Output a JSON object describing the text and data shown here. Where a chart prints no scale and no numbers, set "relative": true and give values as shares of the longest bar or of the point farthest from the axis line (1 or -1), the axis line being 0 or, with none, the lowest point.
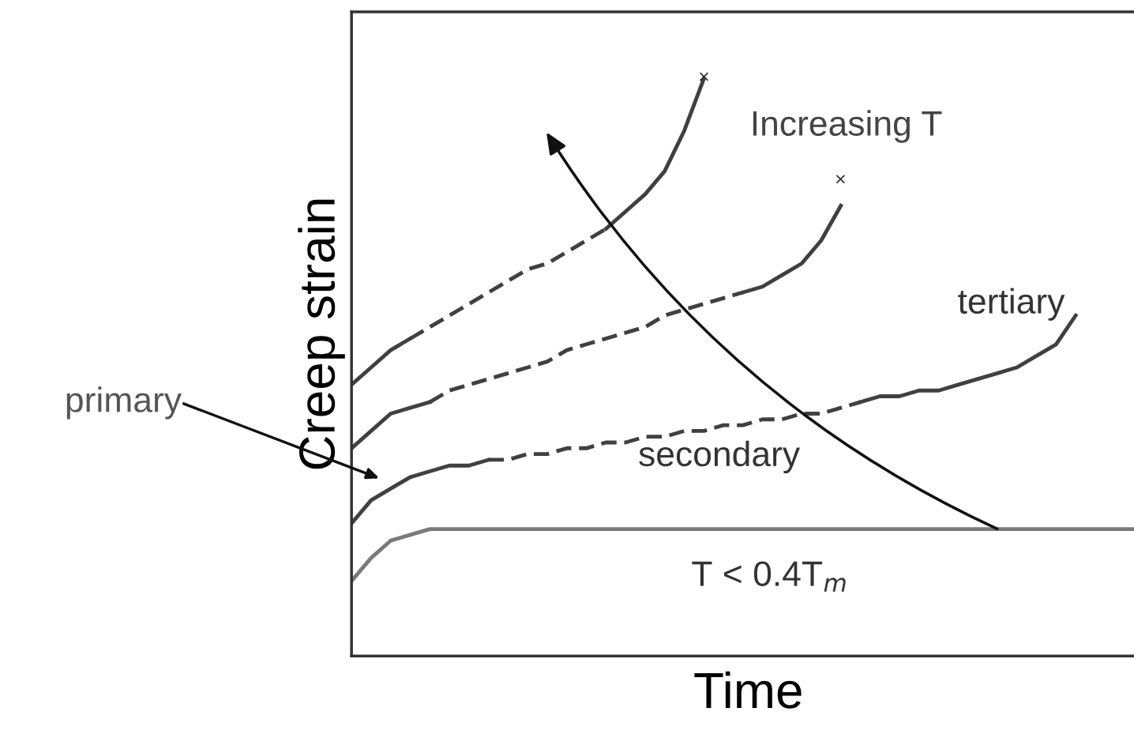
{
  "chart_data": {
    "type": "line",
    "relative": true,
    "xlabel": "Time",
    "ylabel": "Creep strain",
    "tick_labels": false,
    "categories": [
      null,
      null,
      null,
      null,
      null,
      null,
      null,
      null,
      null,
      null,
      null,
      null,
      null,
      null,
      null,
      null,
      null,
      null,
      null,
      null,
      null,
      null,
      null,
      null,
      null,
      null,
      null,
      null,
      null,
      null,
      null,
      null,
      null,
      null,
      null,
      null,
      null,
      null,
      null,
      null,
      null
    ],
    "series": [
      {
        "color": "#404040",
        "line_style": "solid",
        "values": [
          0.47,
          0.5,
          0.53,
          0.55,
          null,
          null,
          null,
          null,
          null,
          null,
          null,
          null,
          null,
          null,
          null,
          null,
          null,
          null,
          null,
          null,
          null,
          null,
          null,
          null,
          null,
          null,
          null,
          null,
          null,
          null,
          null,
          null,
          null,
          null,
          null,
          null,
          null,
          null,
          null,
          null,
          null
        ]
      },
      {
        "color": "#404040",
        "line_style": "dashed",
        "values": [
          null,
          null,
          null,
          0.55,
          0.57,
          0.59,
          0.61,
          0.63,
          0.65,
          0.67,
          0.68,
          0.7,
          0.72,
          0.74,
          null,
          null,
          null,
          null,
          null,
          null,
          null,
          null,
          null,
          null,
          null,
          null,
          null,
          null,
          null,
          null,
          null,
          null,
          null,
          null,
          null,
          null,
          null,
          null,
          null,
          null,
          null
        ]
      },
      {
        "color": "#404040",
        "line_style": "solid",
        "values": [
          null,
          null,
          null,
          null,
          null,
          null,
          null,
          null,
          null,
          null,
          null,
          null,
          null,
          0.74,
          0.77,
          0.8,
          0.84,
          0.91,
          1.0,
          null,
          null,
          null,
          null,
          null,
          null,
          null,
          null,
          null,
          null,
          null,
          null,
          null,
          null,
          null,
          null,
          null,
          null,
          null,
          null,
          null,
          null
        ]
      },
      {
        "color": "#404040",
        "line_style": "solid",
        "values": [
          0.36,
          0.39,
          0.42,
          0.43,
          0.44,
          null,
          null,
          null,
          null,
          null,
          null,
          null,
          null,
          null,
          null,
          null,
          null,
          null,
          null,
          null,
          null,
          null,
          null,
          null,
          null,
          null,
          null,
          null,
          null,
          null,
          null,
          null,
          null,
          null,
          null,
          null,
          null,
          null,
          null,
          null,
          null
        ]
      },
      {
        "color": "#404040",
        "line_style": "dashed",
        "values": [
          null,
          null,
          null,
          null,
          0.44,
          0.46,
          0.47,
          0.48,
          0.49,
          0.5,
          0.51,
          0.53,
          0.54,
          0.55,
          0.56,
          0.57,
          0.59,
          0.6,
          0.61,
          0.62,
          0.63,
          null,
          null,
          null,
          null,
          null,
          null,
          null,
          null,
          null,
          null,
          null,
          null,
          null,
          null,
          null,
          null,
          null,
          null,
          null,
          null
        ]
      },
      {
        "color": "#404040",
        "line_style": "solid",
        "values": [
          null,
          null,
          null,
          null,
          null,
          null,
          null,
          null,
          null,
          null,
          null,
          null,
          null,
          null,
          null,
          null,
          null,
          null,
          null,
          null,
          0.63,
          0.64,
          0.66,
          0.68,
          0.72,
          0.78,
          null,
          null,
          null,
          null,
          null,
          null,
          null,
          null,
          null,
          null,
          null,
          null,
          null,
          null,
          null
        ]
      },
      {
        "color": "#404040",
        "line_style": "solid",
        "values": [
          0.23,
          0.27,
          0.29,
          0.31,
          0.32,
          0.33,
          0.33,
          0.34,
          null,
          null,
          null,
          null,
          null,
          null,
          null,
          null,
          null,
          null,
          null,
          null,
          null,
          null,
          null,
          null,
          null,
          null,
          null,
          null,
          null,
          null,
          null,
          null,
          null,
          null,
          null,
          null,
          null,
          null,
          null,
          null,
          null
        ]
      },
      {
        "color": "#404040",
        "line_style": "dashed",
        "values": [
          null,
          null,
          null,
          null,
          null,
          null,
          null,
          0.34,
          0.34,
          0.35,
          0.35,
          0.36,
          0.36,
          0.37,
          0.37,
          0.38,
          0.38,
          0.39,
          0.39,
          0.4,
          0.4,
          0.41,
          0.41,
          0.42,
          0.42,
          0.43,
          0.44,
          null,
          null,
          null,
          null,
          null,
          null,
          null,
          null,
          null,
          null,
          null,
          null,
          null,
          null
        ]
      },
      {
        "color": "#404040",
        "line_style": "solid",
        "values": [
          null,
          null,
          null,
          null,
          null,
          null,
          null,
          null,
          null,
          null,
          null,
          null,
          null,
          null,
          null,
          null,
          null,
          null,
          null,
          null,
          null,
          null,
          null,
          null,
          null,
          null,
          0.44,
          0.45,
          0.45,
          0.46,
          0.46,
          0.47,
          0.48,
          0.49,
          0.5,
          0.52,
          0.54,
          0.59,
          null,
          null,
          null
        ]
      },
      {
        "color": "#7a7a7a",
        "line_style": "solid",
        "values": [
          0.13,
          0.17,
          0.2,
          0.21,
          0.22,
          0.22,
          0.22,
          0.22,
          0.22,
          0.22,
          0.22,
          0.22,
          0.22,
          0.22,
          0.22,
          0.22,
          0.22,
          0.22,
          0.22,
          0.22,
          0.22,
          0.22,
          0.22,
          0.22,
          0.22,
          0.22,
          0.22,
          0.22,
          0.22,
          0.22,
          0.22,
          0.22,
          0.22,
          0.22,
          0.22,
          0.22,
          0.22,
          0.22,
          0.22,
          0.22,
          0.22
        ]
      }
    ],
    "annotations": [
      "Increasing T",
      "primary",
      "secondary",
      "tertiary",
      "T < 0.4T$_{m}$",
      "×",
      "×"
    ]
  }
}
